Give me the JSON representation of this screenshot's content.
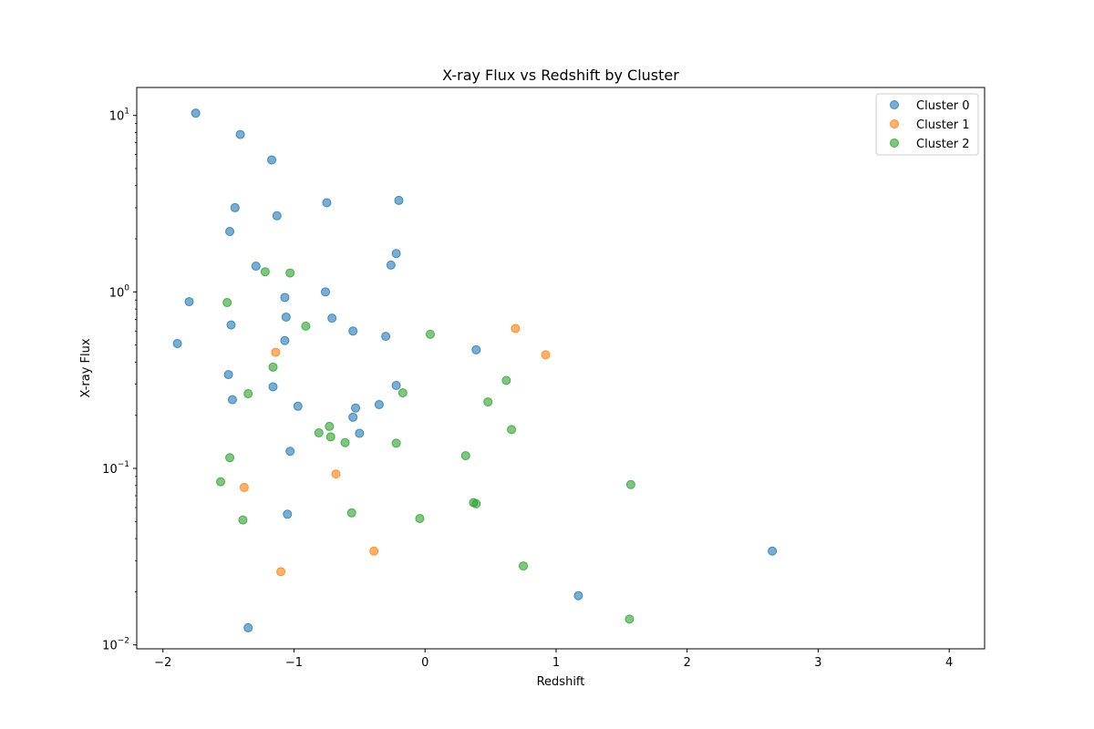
{
  "chart_data": {
    "type": "scatter",
    "title": "X-ray Flux vs Redshift by Cluster",
    "xlabel": "Redshift",
    "ylabel": "X-ray Flux",
    "xlim": [
      -2.2,
      4.27
    ],
    "ylim": [
      0.0095,
      14.4
    ],
    "yscale": "log",
    "xticks": [
      -2,
      -1,
      0,
      1,
      2,
      3,
      4
    ],
    "xtick_labels": [
      "−2",
      "−1",
      "0",
      "1",
      "2",
      "3",
      "4"
    ],
    "yticks": [
      {
        "value": 0.01,
        "base": "10",
        "exp": "−2"
      },
      {
        "value": 0.1,
        "base": "10",
        "exp": "−1"
      },
      {
        "value": 1,
        "base": "10",
        "exp": "0"
      },
      {
        "value": 10,
        "base": "10",
        "exp": "1"
      }
    ],
    "legend_position": "top-right",
    "series": [
      {
        "name": "Cluster 0",
        "color": "#1f77b4",
        "points": [
          [
            -1.75,
            10.3
          ],
          [
            -1.41,
            7.8
          ],
          [
            -1.17,
            5.6
          ],
          [
            -1.45,
            3.0
          ],
          [
            -1.13,
            2.7
          ],
          [
            -0.75,
            3.2
          ],
          [
            -0.2,
            3.3
          ],
          [
            -1.49,
            2.2
          ],
          [
            -0.22,
            1.65
          ],
          [
            -1.29,
            1.4
          ],
          [
            -0.26,
            1.42
          ],
          [
            -1.8,
            0.88
          ],
          [
            -1.07,
            0.93
          ],
          [
            -0.76,
            1.0
          ],
          [
            -1.06,
            0.72
          ],
          [
            -0.71,
            0.71
          ],
          [
            -1.48,
            0.65
          ],
          [
            -0.55,
            0.6
          ],
          [
            -0.3,
            0.56
          ],
          [
            -1.89,
            0.51
          ],
          [
            -1.07,
            0.53
          ],
          [
            0.39,
            0.47
          ],
          [
            -1.5,
            0.34
          ],
          [
            -1.16,
            0.29
          ],
          [
            -0.22,
            0.295
          ],
          [
            -1.47,
            0.245
          ],
          [
            -0.97,
            0.225
          ],
          [
            -0.53,
            0.22
          ],
          [
            -0.35,
            0.23
          ],
          [
            -0.55,
            0.195
          ],
          [
            -0.5,
            0.158
          ],
          [
            -1.03,
            0.125
          ],
          [
            -1.05,
            0.055
          ],
          [
            2.65,
            0.034
          ],
          [
            1.17,
            0.019
          ],
          [
            -1.35,
            0.0125
          ]
        ]
      },
      {
        "name": "Cluster 1",
        "color": "#ff7f0e",
        "points": [
          [
            0.69,
            0.62
          ],
          [
            0.92,
            0.44
          ],
          [
            -1.14,
            0.455
          ],
          [
            -0.68,
            0.093
          ],
          [
            -1.38,
            0.078
          ],
          [
            -0.39,
            0.034
          ],
          [
            -1.1,
            0.026
          ]
        ]
      },
      {
        "name": "Cluster 2",
        "color": "#2ca02c",
        "points": [
          [
            -1.22,
            1.3
          ],
          [
            -1.03,
            1.28
          ],
          [
            -1.51,
            0.87
          ],
          [
            -0.91,
            0.64
          ],
          [
            0.04,
            0.575
          ],
          [
            -1.16,
            0.375
          ],
          [
            0.62,
            0.315
          ],
          [
            -1.35,
            0.265
          ],
          [
            -0.17,
            0.268
          ],
          [
            0.48,
            0.238
          ],
          [
            -0.73,
            0.173
          ],
          [
            0.66,
            0.166
          ],
          [
            -0.81,
            0.159
          ],
          [
            -0.72,
            0.151
          ],
          [
            -0.61,
            0.14
          ],
          [
            -0.22,
            0.139
          ],
          [
            0.31,
            0.118
          ],
          [
            -1.49,
            0.115
          ],
          [
            -1.56,
            0.084
          ],
          [
            1.57,
            0.081
          ],
          [
            0.37,
            0.064
          ],
          [
            0.39,
            0.063
          ],
          [
            -0.56,
            0.056
          ],
          [
            -0.04,
            0.052
          ],
          [
            -1.39,
            0.051
          ],
          [
            0.75,
            0.028
          ],
          [
            1.56,
            0.014
          ]
        ]
      }
    ]
  }
}
